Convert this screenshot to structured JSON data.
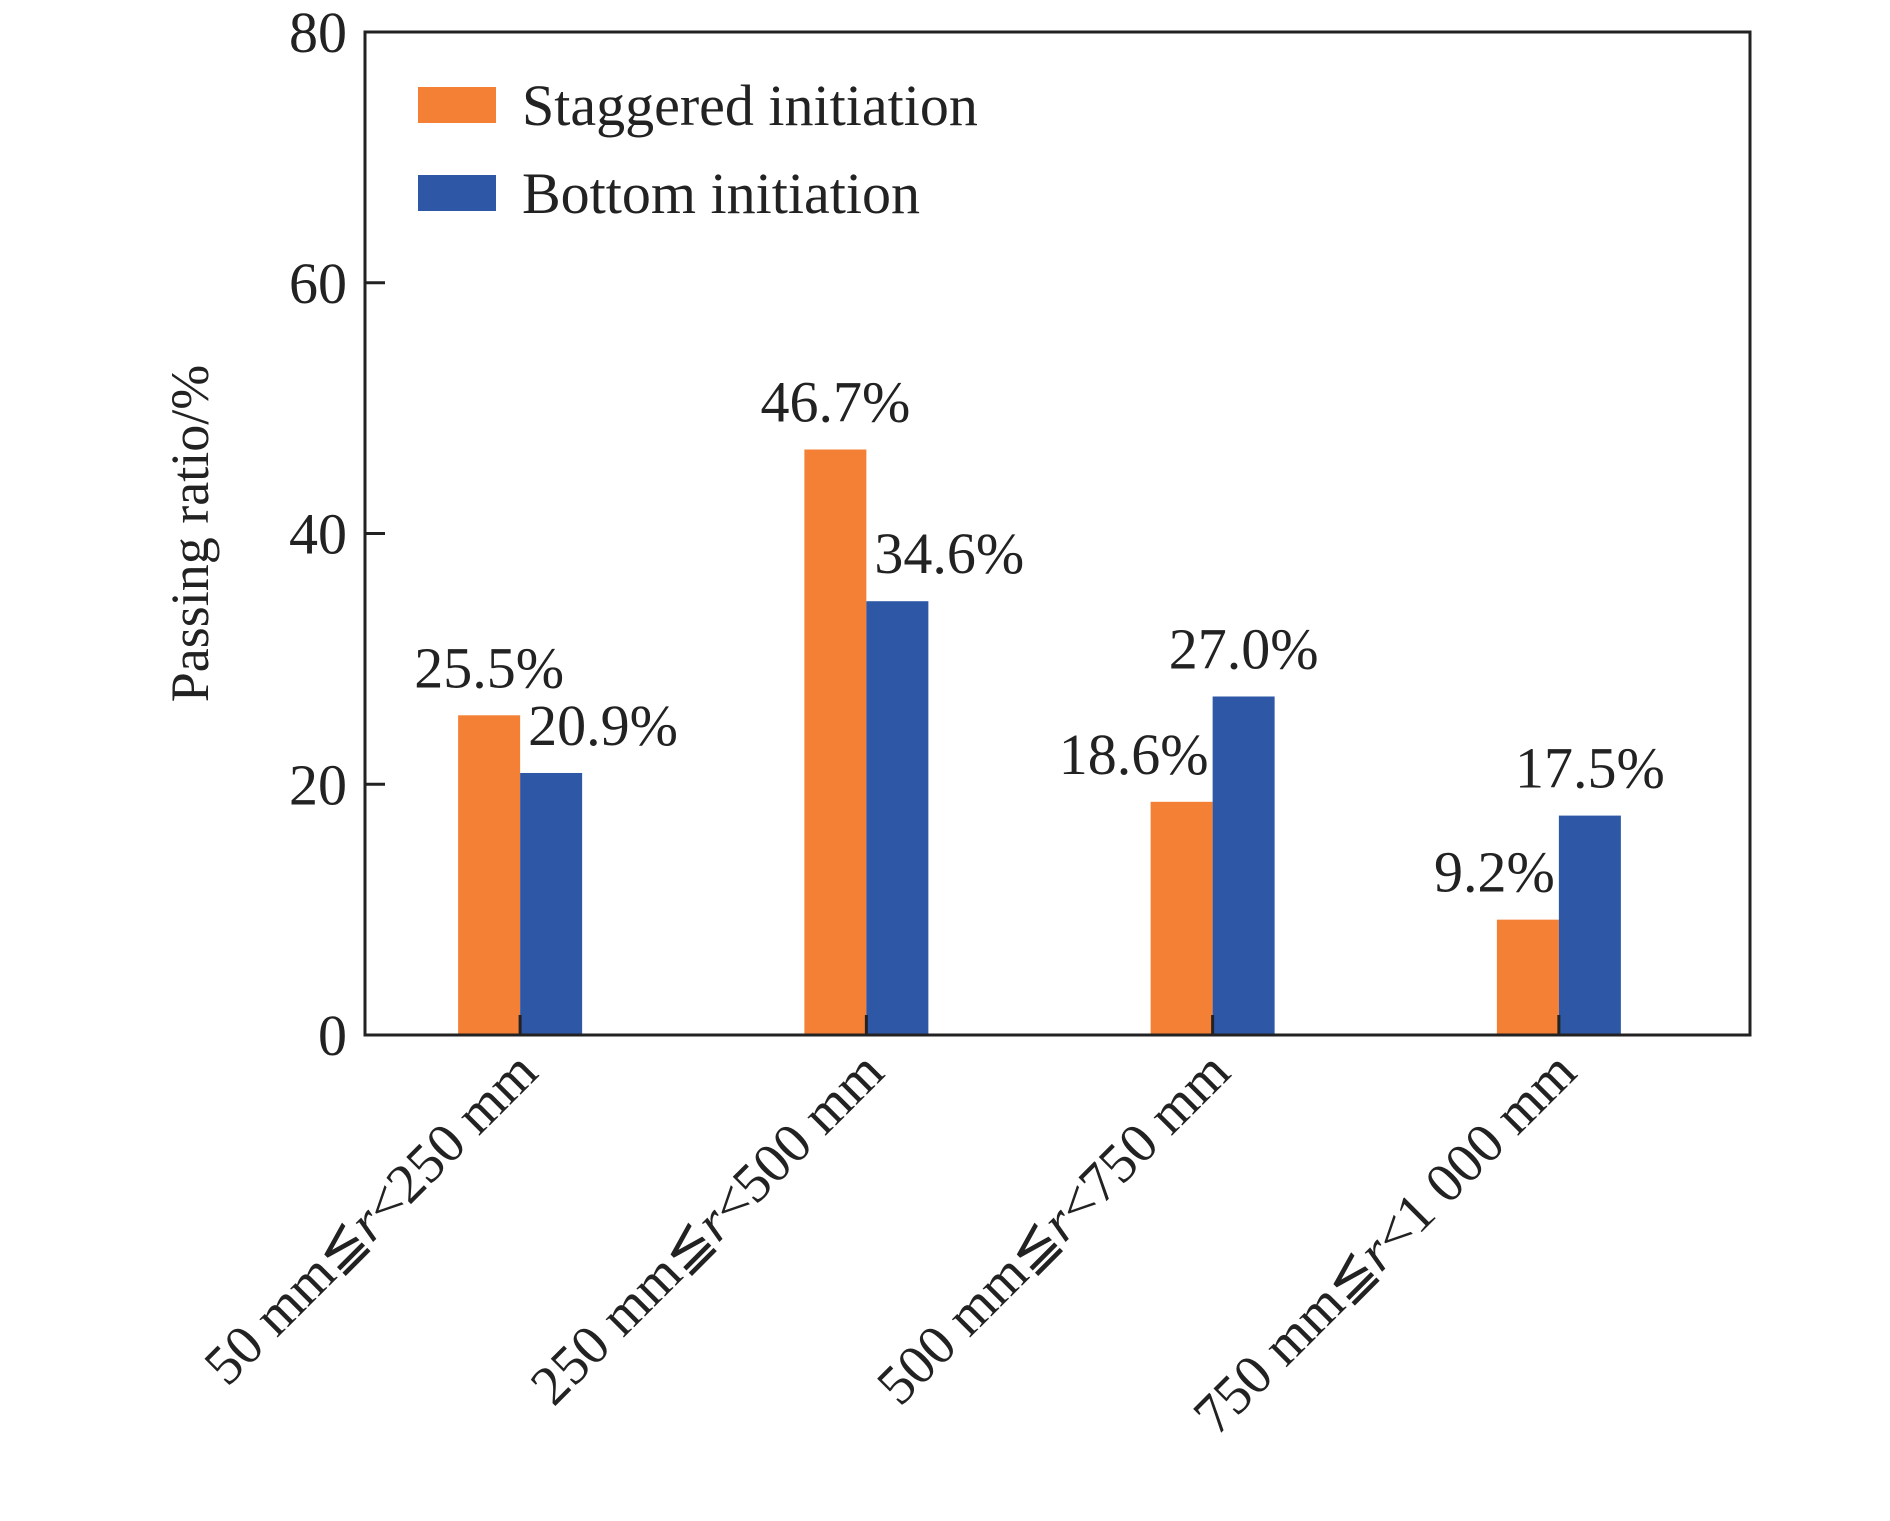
{
  "chart_data": {
    "type": "bar",
    "title": "",
    "xlabel": "",
    "ylabel": "Passing ratio/%",
    "ylim": [
      0,
      80
    ],
    "yticks": [
      0,
      20,
      40,
      60,
      80
    ],
    "grid": false,
    "legend_position": "top-left",
    "categories": [
      {
        "prefix": "50 mm≦",
        "var": "r",
        "suffix": "<250 mm"
      },
      {
        "prefix": "250 mm≦",
        "var": "r",
        "suffix": "<500 mm"
      },
      {
        "prefix": "500 mm≦",
        "var": "r",
        "suffix": "<750 mm"
      },
      {
        "prefix": "750 mm≦",
        "var": "r",
        "suffix": "<1 000 mm"
      }
    ],
    "series": [
      {
        "name": "Staggered initiation",
        "color": "#F38035",
        "values": [
          25.5,
          46.7,
          18.6,
          9.2
        ],
        "labels": [
          "25.5%",
          "46.7%",
          "18.6%",
          "9.2%"
        ]
      },
      {
        "name": "Bottom initiation",
        "color": "#2E58A6",
        "values": [
          20.9,
          34.6,
          27.0,
          17.5
        ],
        "labels": [
          "20.9%",
          "34.6%",
          "27.0%",
          "17.5%"
        ]
      }
    ]
  }
}
